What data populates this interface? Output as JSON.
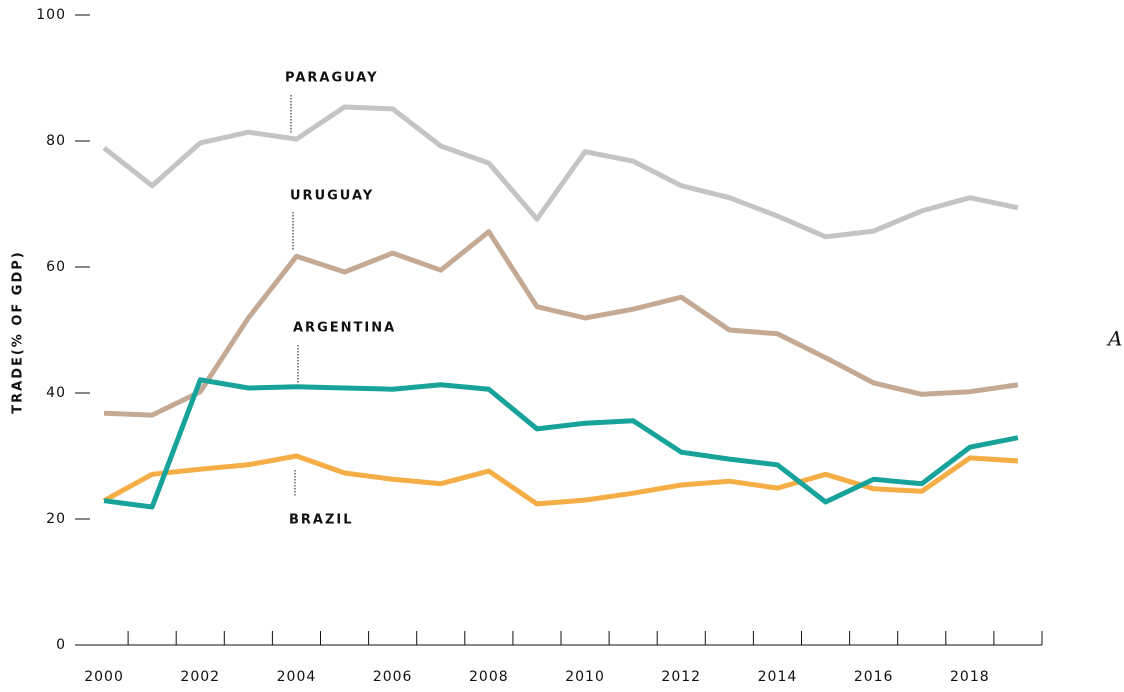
{
  "chart_data": {
    "type": "line",
    "y_label": "TRADE(% OF GDP)",
    "x": [
      2000,
      2001,
      2002,
      2003,
      2004,
      2005,
      2006,
      2007,
      2008,
      2009,
      2010,
      2011,
      2012,
      2013,
      2014,
      2015,
      2016,
      2017,
      2018,
      2019
    ],
    "series": [
      {
        "name": "PARAGUAY",
        "color": "#c4c4c4",
        "values": [
          78.9,
          72.9,
          79.7,
          81.4,
          80.3,
          85.4,
          85.1,
          79.2,
          76.5,
          67.6,
          78.3,
          76.8,
          72.9,
          71.0,
          68.1,
          64.8,
          65.7,
          68.9,
          71.0,
          69.4
        ]
      },
      {
        "name": "URUGUAY",
        "color": "#c4aa95",
        "values": [
          36.8,
          36.5,
          40.2,
          51.9,
          61.7,
          59.2,
          62.2,
          59.5,
          65.6,
          53.7,
          51.9,
          53.3,
          55.2,
          50.0,
          49.4,
          45.6,
          41.6,
          39.8,
          40.2,
          41.3
        ]
      },
      {
        "name": "BRAZIL",
        "color": "#f5ad45",
        "values": [
          22.9,
          27.1,
          27.9,
          28.6,
          30.0,
          27.3,
          26.3,
          25.6,
          27.6,
          22.4,
          23.0,
          24.1,
          25.4,
          26.0,
          24.9,
          27.1,
          24.8,
          24.4,
          29.7,
          29.2
        ]
      },
      {
        "name": "ARGENTINA",
        "color": "#17a39a",
        "values": [
          22.9,
          21.9,
          42.1,
          40.8,
          41.0,
          40.8,
          40.6,
          41.3,
          40.6,
          34.3,
          35.2,
          35.6,
          30.6,
          29.5,
          28.6,
          22.7,
          26.3,
          25.6,
          31.4,
          32.9
        ]
      }
    ],
    "xlim": [
      1999.5,
      2019.5
    ],
    "xticks": [
      2000,
      2002,
      2004,
      2006,
      2008,
      2010,
      2012,
      2014,
      2016,
      2018
    ],
    "xminorticks": [
      2000.5,
      2001.5,
      2002.5,
      2003.5,
      2004.5,
      2005.5,
      2006.5,
      2007.5,
      2008.5,
      2009.5,
      2010.5,
      2011.5,
      2012.5,
      2013.5,
      2014.5,
      2015.5,
      2016.5,
      2017.5,
      2018.5,
      2019.5
    ],
    "ylim": [
      0,
      100
    ],
    "yticks": [
      0,
      20,
      40,
      60,
      80,
      100
    ],
    "annotations": [
      "A"
    ]
  }
}
